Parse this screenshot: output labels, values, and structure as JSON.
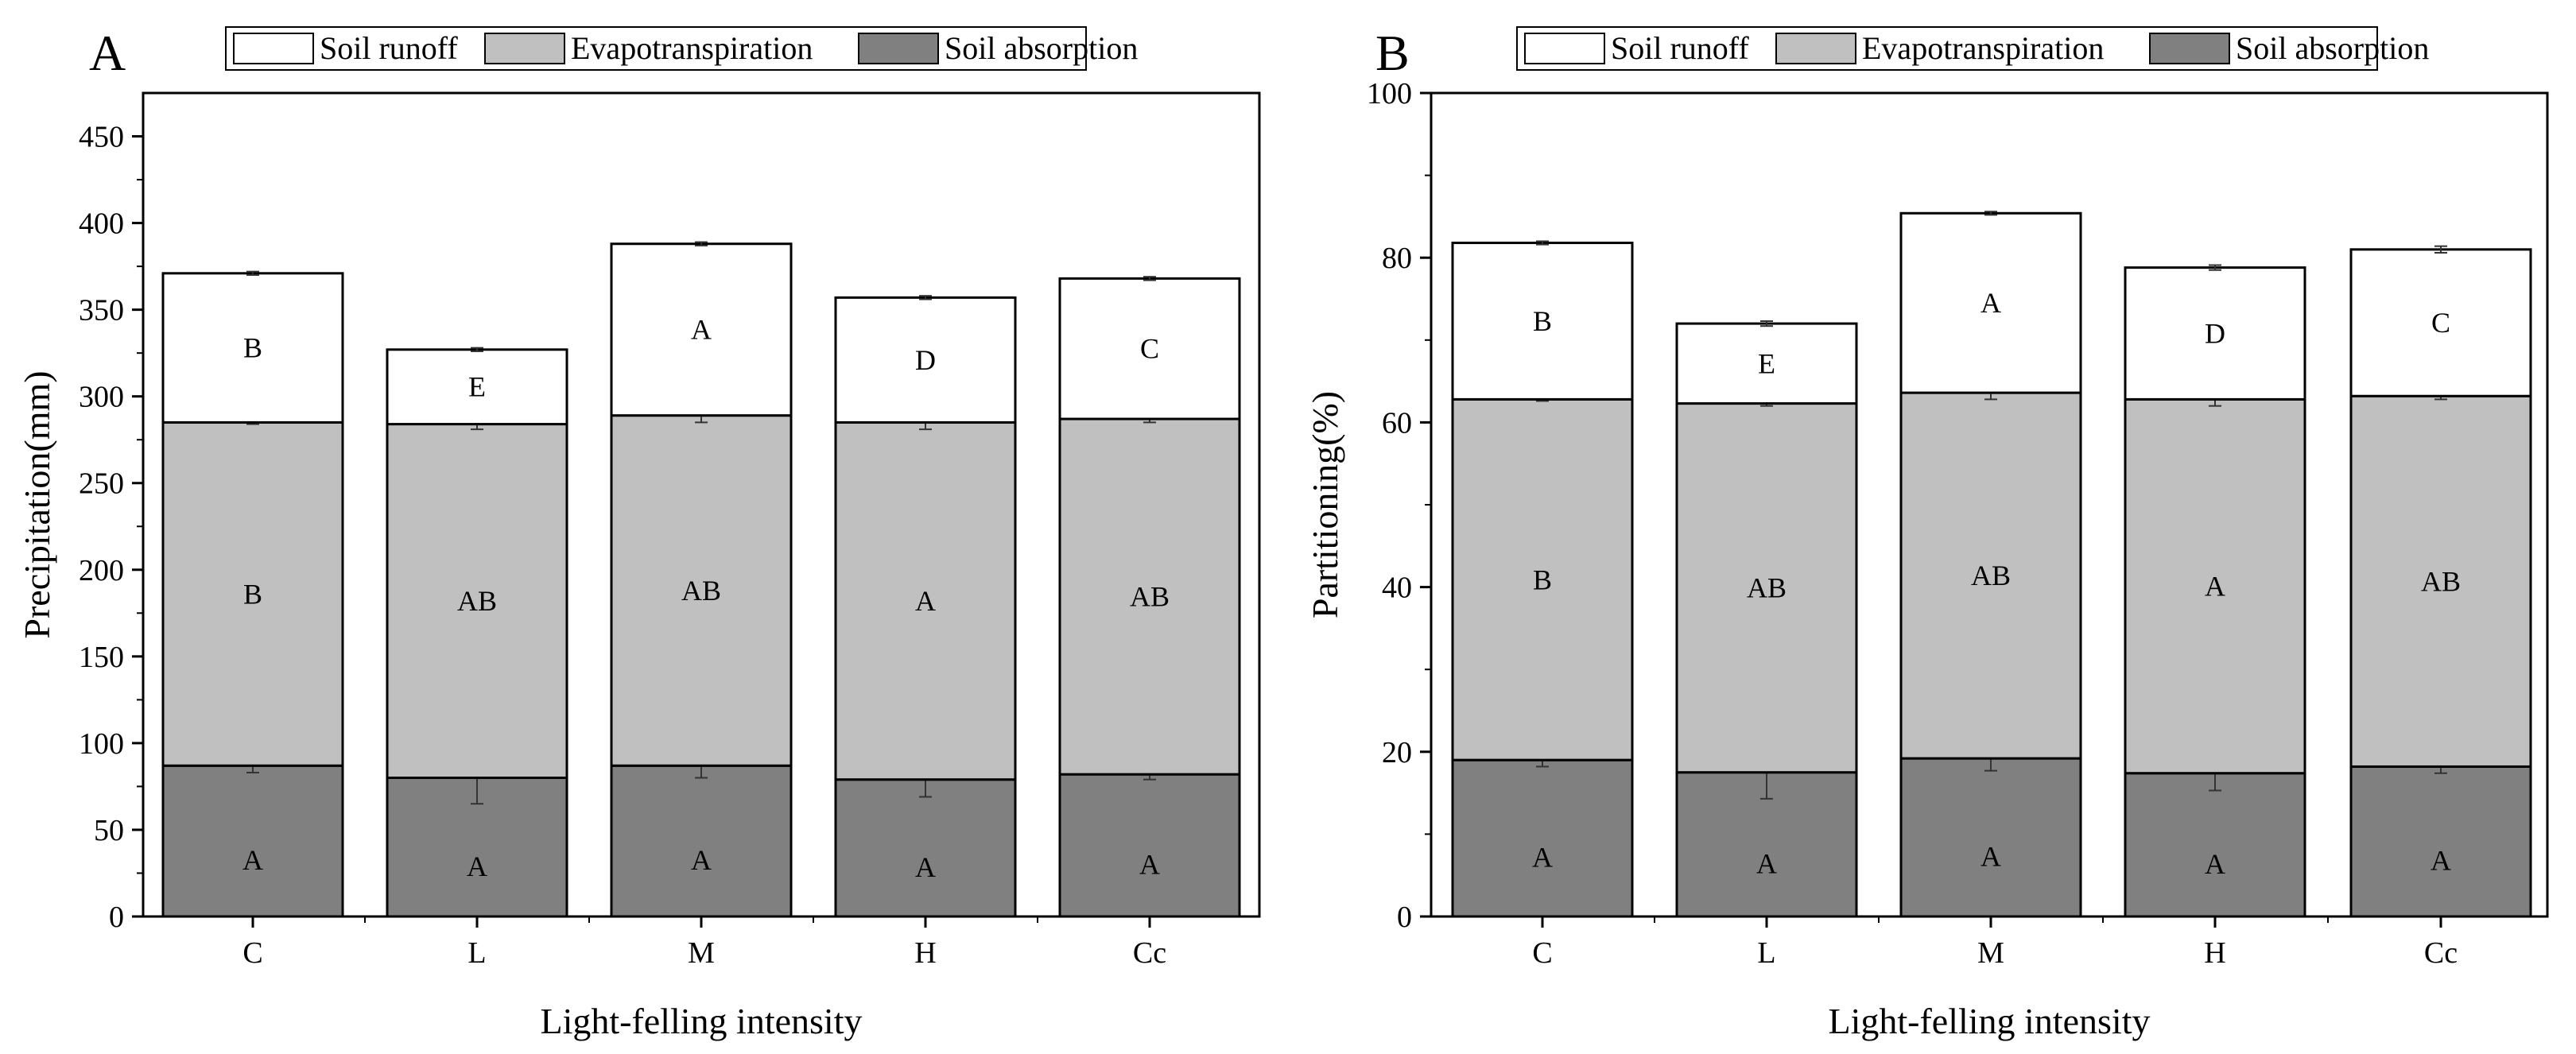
{
  "legend": [
    {
      "key": "runoff",
      "label": "Soil runoff",
      "color": "#ffffff"
    },
    {
      "key": "evap",
      "label": "Evapotranspiration",
      "color": "#c0c0c0"
    },
    {
      "key": "absorb",
      "label": "Soil absorption",
      "color": "#808080"
    }
  ],
  "chart_data": [
    {
      "type": "bar",
      "stacked": true,
      "panel": "A",
      "xlabel": "Light-felling intensity",
      "ylabel": "Precipitation(mm)",
      "ylim": [
        0,
        475
      ],
      "yticks": [
        0,
        50,
        100,
        150,
        200,
        250,
        300,
        350,
        400,
        450
      ],
      "categories": [
        "C",
        "L",
        "M",
        "H",
        "Cc"
      ],
      "series": [
        {
          "key": "absorb",
          "name": "Soil absorption",
          "values": [
            87,
            80,
            87,
            79,
            82
          ],
          "errors": [
            4,
            15,
            7,
            10,
            3
          ],
          "letters": [
            "A",
            "A",
            "A",
            "A",
            "A"
          ]
        },
        {
          "key": "evap",
          "name": "Evapotranspiration",
          "values": [
            198,
            204,
            202,
            206,
            205
          ],
          "errors": [
            1,
            3,
            4,
            4,
            2
          ],
          "letters": [
            "B",
            "AB",
            "AB",
            "A",
            "AB"
          ]
        },
        {
          "key": "runoff",
          "name": "Soil runoff",
          "values": [
            86,
            43,
            99,
            72,
            81
          ],
          "errors": [
            1,
            1,
            1,
            1,
            1
          ],
          "letters": [
            "B",
            "E",
            "A",
            "D",
            "C"
          ]
        }
      ]
    },
    {
      "type": "bar",
      "stacked": true,
      "panel": "B",
      "xlabel": "Light-felling intensity",
      "ylabel": "Partitioning(%)",
      "ylim": [
        0,
        100
      ],
      "yticks": [
        0,
        20,
        40,
        60,
        80,
        100
      ],
      "categories": [
        "C",
        "L",
        "M",
        "H",
        "Cc"
      ],
      "series": [
        {
          "key": "absorb",
          "name": "Soil absorption",
          "values": [
            19,
            17.5,
            19.2,
            17.4,
            18.2
          ],
          "errors": [
            0.8,
            3.2,
            1.5,
            2.1,
            0.8
          ],
          "letters": [
            "A",
            "A",
            "A",
            "A",
            "A"
          ]
        },
        {
          "key": "evap",
          "name": "Evapotranspiration",
          "values": [
            43.8,
            44.8,
            44.4,
            45.4,
            45.0
          ],
          "errors": [
            0.2,
            0.3,
            0.8,
            0.8,
            0.4
          ],
          "letters": [
            "B",
            "AB",
            "AB",
            "A",
            "AB"
          ]
        },
        {
          "key": "runoff",
          "name": "Soil runoff",
          "values": [
            19.0,
            9.7,
            21.8,
            16.0,
            17.8
          ],
          "errors": [
            0.2,
            0.3,
            0.2,
            0.3,
            0.4
          ],
          "letters": [
            "B",
            "E",
            "A",
            "D",
            "C"
          ]
        }
      ]
    }
  ]
}
